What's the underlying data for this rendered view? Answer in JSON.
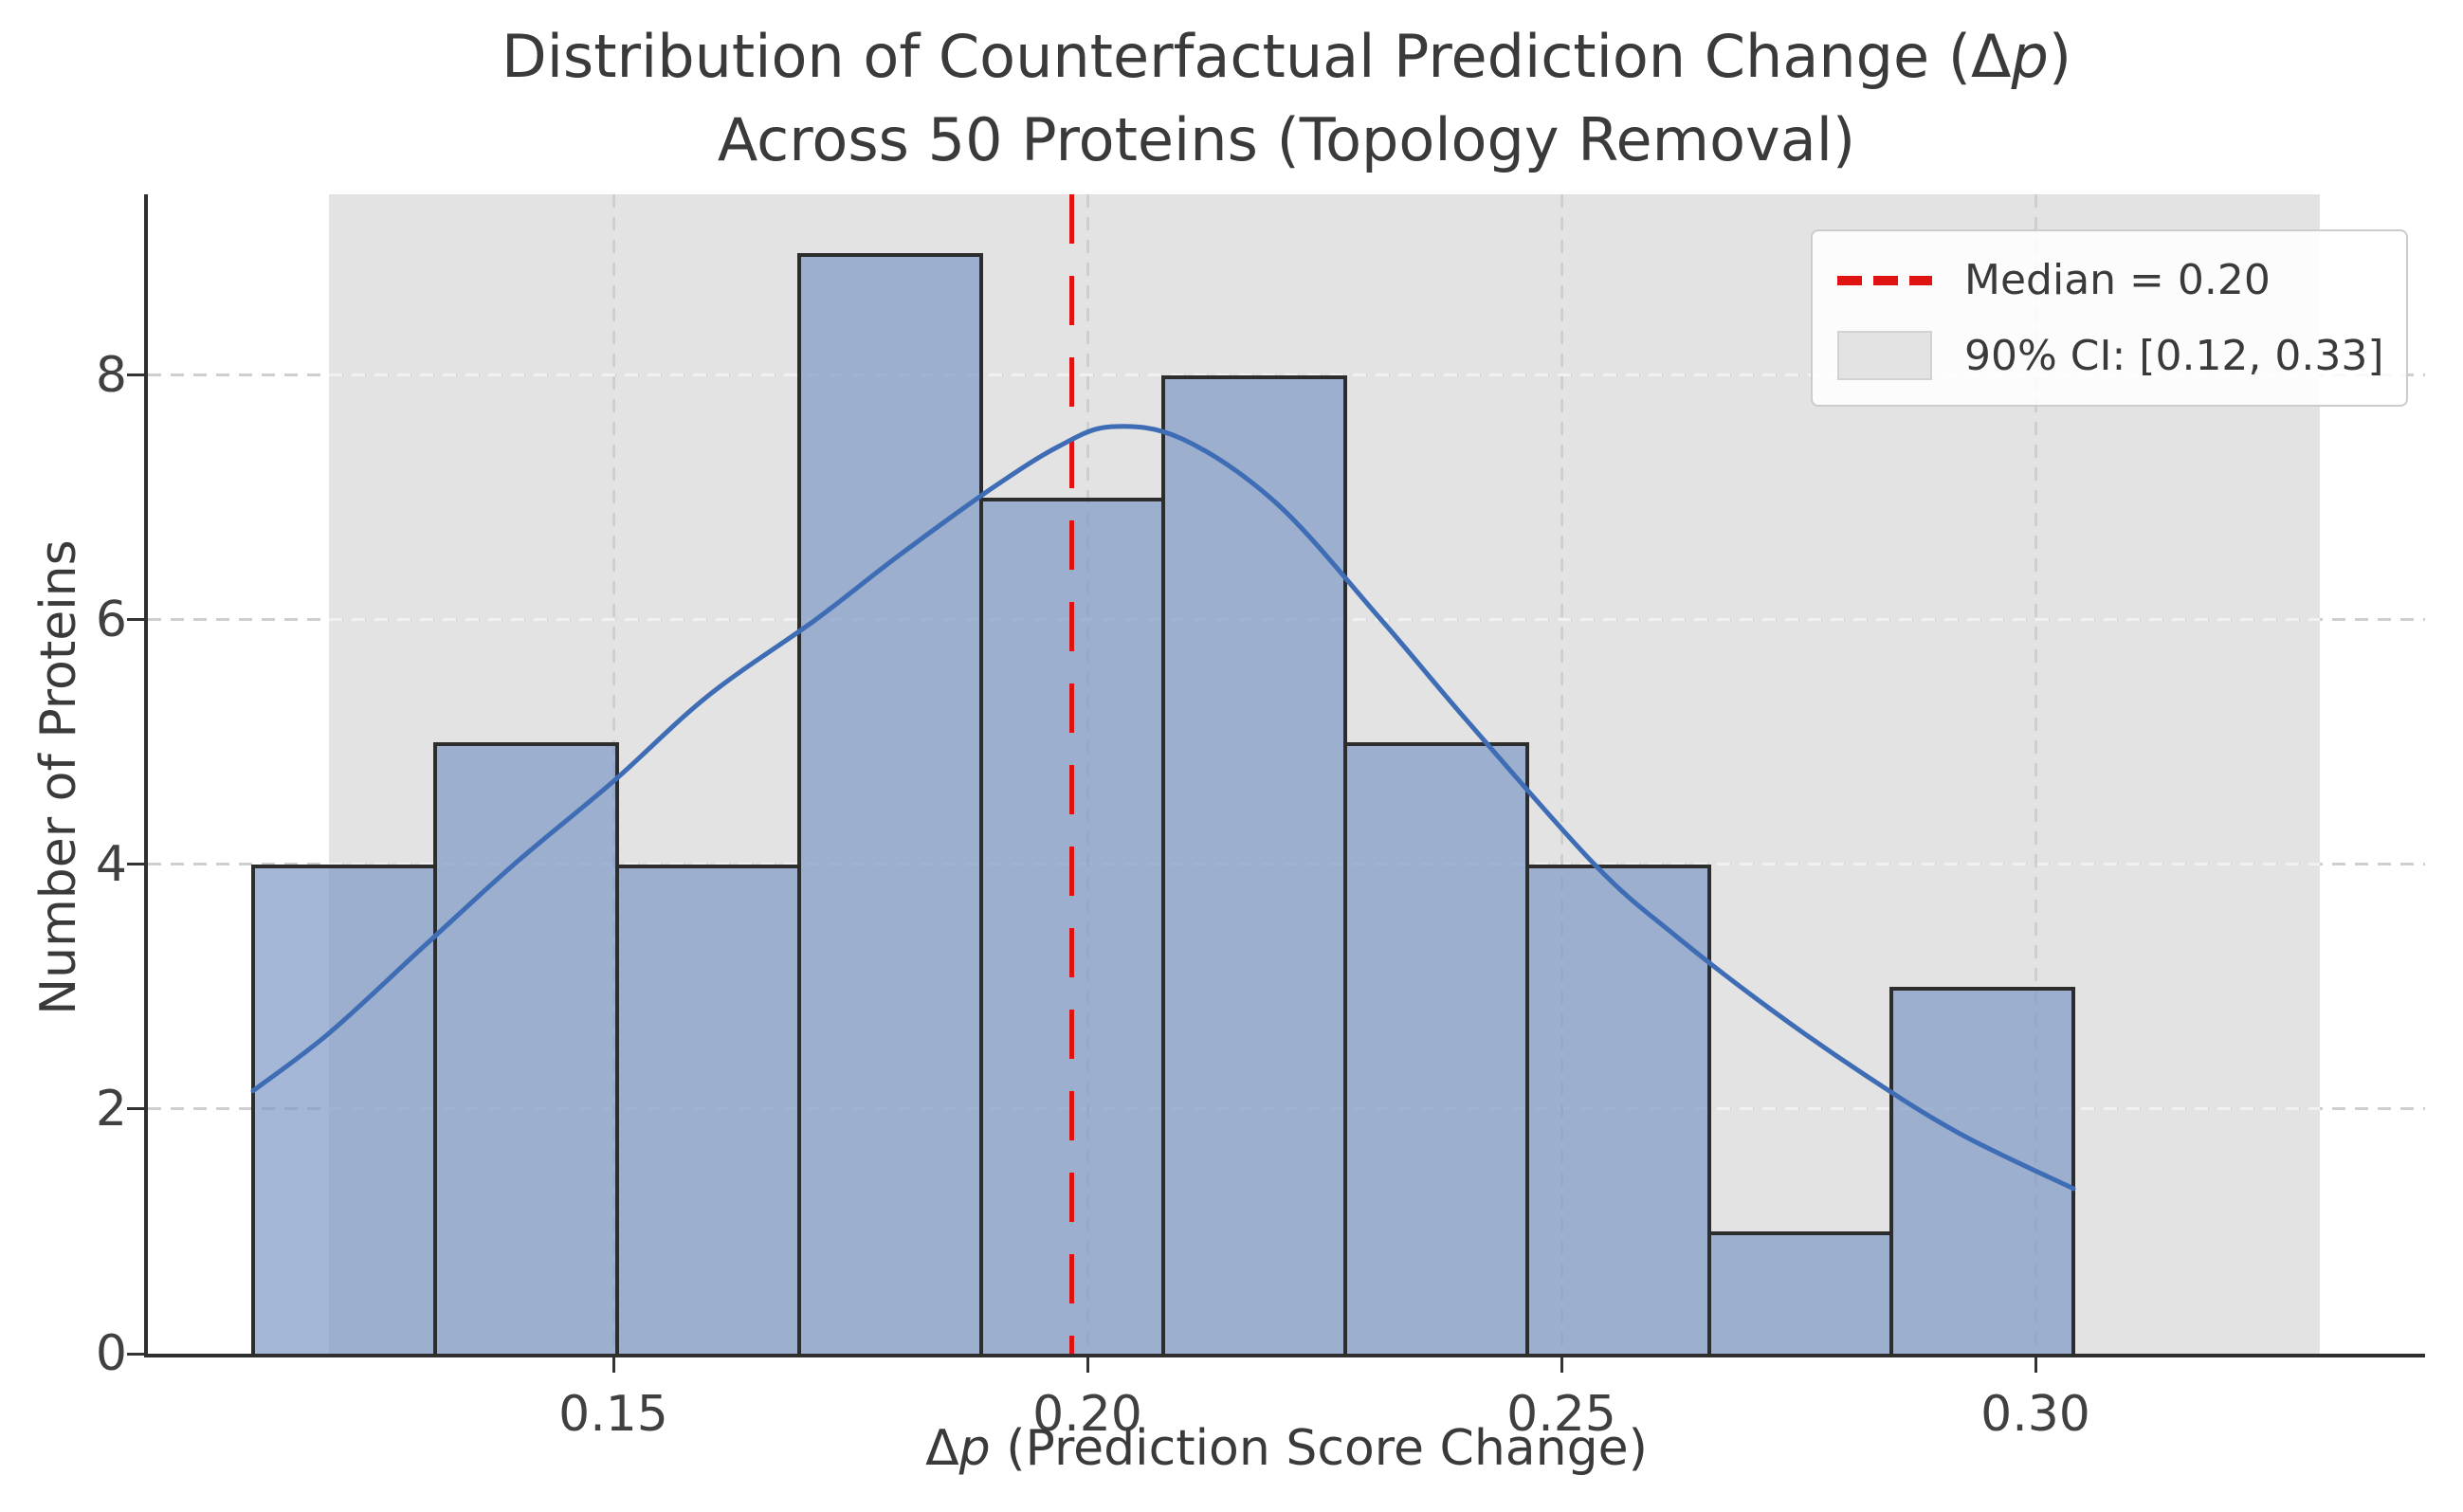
{
  "figure": {
    "title_line1_pre": "Distribution of Counterfactual Prediction Change (Δ",
    "title_italic_symbol": "p",
    "title_line1_post": ")",
    "title_line2": "Across 50 Proteins (Topology Removal)",
    "ylabel": "Number of Proteins",
    "xlabel_pre": "Δ",
    "xlabel_italic_symbol": "p",
    "xlabel_post": " (Prediction Score Change)"
  },
  "legend": {
    "position": "upper right",
    "items": [
      {
        "sample": "red-dashed-line",
        "label": "Median = 0.20"
      },
      {
        "sample": "gray-patch",
        "label": "90% CI: [0.12, 0.33]"
      }
    ]
  },
  "chart_data": {
    "type": "bar",
    "subtype": "histogram-with-kde",
    "title": "Distribution of Counterfactual Prediction Change (Δp) Across 50 Proteins (Topology Removal)",
    "xlabel": "Δp (Prediction Score Change)",
    "ylabel": "Number of Proteins",
    "n_total": 50,
    "bins": {
      "start": 0.112,
      "width": 0.0192,
      "edges": [
        0.112,
        0.1312,
        0.1504,
        0.1696,
        0.1888,
        0.208,
        0.2272,
        0.2464,
        0.2656,
        0.2848,
        0.304
      ],
      "counts": [
        4,
        5,
        4,
        9,
        7,
        8,
        5,
        4,
        1,
        3
      ]
    },
    "kde_curve": {
      "x": [
        0.112,
        0.12,
        0.13,
        0.1395,
        0.15,
        0.16,
        0.1713,
        0.18,
        0.19,
        0.197,
        0.2025,
        0.21,
        0.22,
        0.231,
        0.24,
        0.2535,
        0.262,
        0.272,
        0.282,
        0.292,
        0.304
      ],
      "y": [
        2.15,
        2.62,
        3.33,
        4.0,
        4.68,
        5.38,
        6.0,
        6.52,
        7.08,
        7.42,
        7.58,
        7.48,
        6.95,
        6.0,
        5.18,
        4.0,
        3.42,
        2.82,
        2.28,
        1.8,
        1.35
      ]
    },
    "median_line_x": 0.1983,
    "ci_span": [
      0.12,
      0.33
    ],
    "x_ticks": [
      0.15,
      0.2,
      0.25,
      0.3
    ],
    "x_tick_labels": [
      "0.15",
      "0.20",
      "0.25",
      "0.30"
    ],
    "y_ticks": [
      0,
      2,
      4,
      6,
      8
    ],
    "y_tick_labels": [
      "0",
      "2",
      "4",
      "6",
      "8"
    ],
    "xlim": [
      0.1009,
      0.3411
    ],
    "ylim": [
      0,
      9.48
    ],
    "grid": "dashed, both axes",
    "legend_position": "upper right",
    "colors": {
      "bar_fill": "rgba(126,153,196,0.70)",
      "bar_edge": "#2d2d2d",
      "kde_line": "#3f6db5",
      "median_line": "#e01313",
      "ci_span_fill": "#e3e3e3",
      "grid": "#cfcfcf",
      "text": "#3a3a3a"
    }
  }
}
